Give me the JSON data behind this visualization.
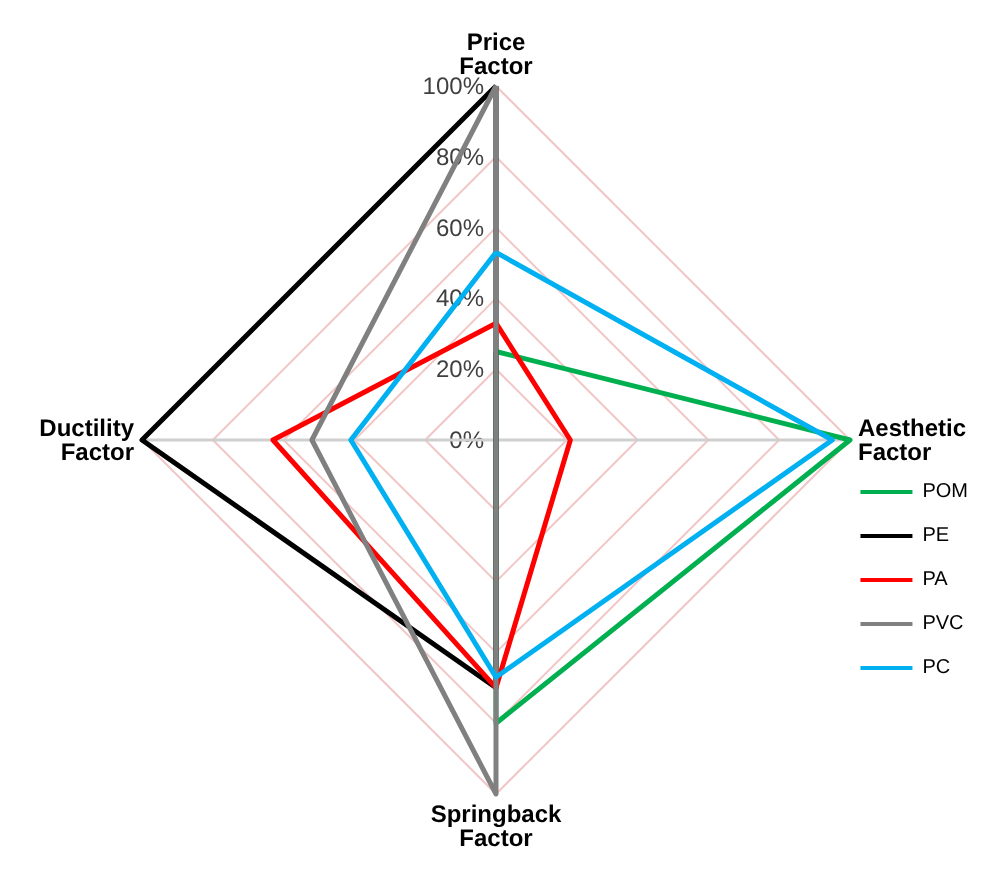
{
  "chart_data": {
    "type": "radar",
    "categories": [
      "Price Factor",
      "Aesthetic Factor",
      "Springback Factor",
      "Ductility Factor"
    ],
    "series": [
      {
        "name": "POM",
        "color": "#00b050",
        "values": [
          25,
          100,
          80,
          0
        ]
      },
      {
        "name": "PE",
        "color": "#000000",
        "values": [
          100,
          0,
          70,
          100
        ]
      },
      {
        "name": "PA",
        "color": "#ff0000",
        "values": [
          33,
          21,
          70,
          63
        ]
      },
      {
        "name": "PVC",
        "color": "#808080",
        "values": [
          100,
          0,
          100,
          52
        ]
      },
      {
        "name": "PC",
        "color": "#00b0f0",
        "values": [
          53,
          95,
          67,
          41
        ]
      }
    ],
    "ylim": [
      0,
      100
    ],
    "yticks": [
      {
        "value": 0,
        "label": "0%"
      },
      {
        "value": 20,
        "label": "20%"
      },
      {
        "value": 40,
        "label": "40%"
      },
      {
        "value": 60,
        "label": "60%"
      },
      {
        "value": 80,
        "label": "80%"
      },
      {
        "value": 100,
        "label": "100%"
      }
    ],
    "grid": true,
    "legend": "bottom right",
    "marker": "none",
    "line_style": "solid"
  }
}
